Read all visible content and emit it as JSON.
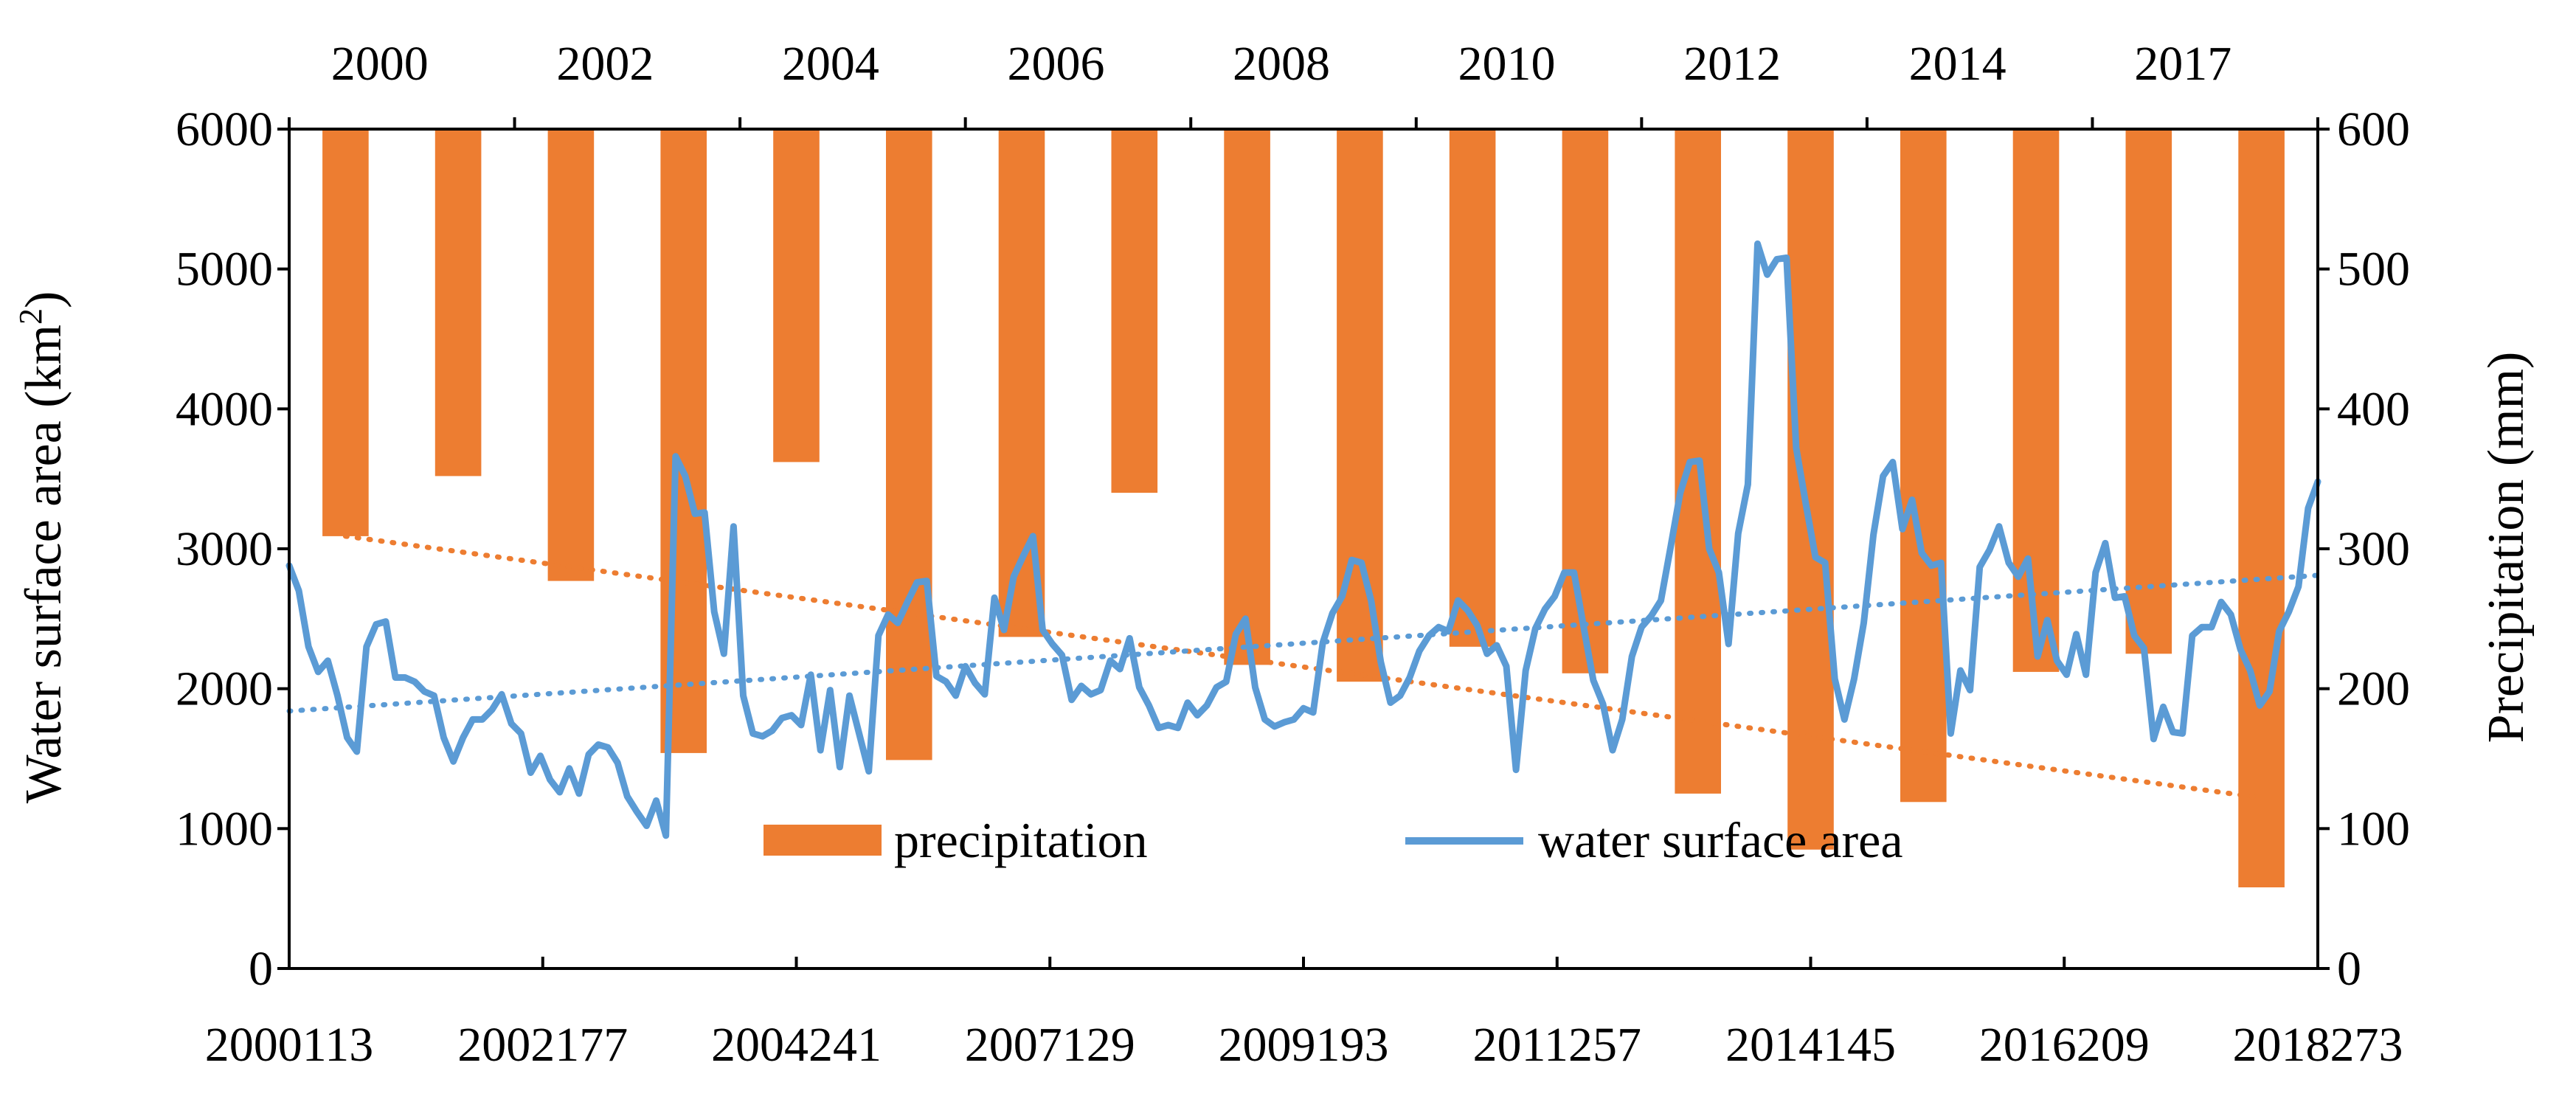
{
  "chart_data": {
    "type": "bar+line",
    "colors": {
      "precipitation": "#ED7D31",
      "water_surface_area": "#5B9BD5",
      "axis": "#000000"
    },
    "left_axis": {
      "title_main": "Water surface area (km",
      "title_sup": "2",
      "title_close": ")",
      "ylim": [
        0,
        6000
      ],
      "ticks": [
        "0",
        "1000",
        "2000",
        "3000",
        "4000",
        "5000",
        "6000"
      ]
    },
    "right_axis": {
      "title": "Precipitation (mm)",
      "ylim": [
        0,
        600
      ],
      "ticks": [
        "0",
        "100",
        "200",
        "300",
        "400",
        "500",
        "600"
      ]
    },
    "bottom_axis": {
      "tick_labels": [
        "2000113",
        "2002177",
        "2004241",
        "2007129",
        "2009193",
        "2011257",
        "2014145",
        "2016209",
        "2018273"
      ]
    },
    "top_axis": {
      "tick_labels": [
        "2000",
        "2002",
        "2004",
        "2006",
        "2008",
        "2010",
        "2012",
        "2014",
        "2017"
      ]
    },
    "legend": [
      {
        "key": "precipitation",
        "label": "precipitation",
        "kind": "bar"
      },
      {
        "key": "water_surface_area",
        "label": "water surface area",
        "kind": "line"
      }
    ],
    "precipitation": {
      "name": "precipitation",
      "unit": "mm",
      "values": [
        291,
        248,
        323,
        446,
        238,
        451,
        363,
        260,
        383,
        395,
        370,
        389,
        475,
        515,
        481,
        388,
        375,
        542
      ]
    },
    "precipitation_trend": {
      "start": 291,
      "end": 478
    },
    "water_surface_area": {
      "name": "water surface area",
      "unit": "km2",
      "values": [
        2880,
        2700,
        2300,
        2120,
        2200,
        1950,
        1650,
        1550,
        2300,
        2460,
        2480,
        2080,
        2080,
        2050,
        1980,
        1950,
        1650,
        1480,
        1650,
        1780,
        1780,
        1850,
        1960,
        1750,
        1680,
        1400,
        1520,
        1350,
        1260,
        1430,
        1250,
        1530,
        1600,
        1580,
        1470,
        1230,
        1120,
        1020,
        1200,
        950,
        3660,
        3520,
        3250,
        3260,
        2550,
        2250,
        3160,
        1950,
        1680,
        1660,
        1700,
        1790,
        1810,
        1740,
        2100,
        1560,
        1990,
        1440,
        1950,
        1680,
        1410,
        2380,
        2530,
        2470,
        2620,
        2760,
        2770,
        2090,
        2050,
        1950,
        2160,
        2040,
        1960,
        2650,
        2420,
        2800,
        2950,
        3090,
        2420,
        2320,
        2240,
        1920,
        2020,
        1960,
        1990,
        2200,
        2140,
        2360,
        2010,
        1880,
        1720,
        1740,
        1720,
        1900,
        1810,
        1880,
        2010,
        2050,
        2390,
        2500,
        2010,
        1780,
        1730,
        1760,
        1780,
        1860,
        1830,
        2330,
        2540,
        2660,
        2920,
        2900,
        2630,
        2190,
        1900,
        1950,
        2080,
        2270,
        2380,
        2440,
        2410,
        2630,
        2560,
        2450,
        2250,
        2310,
        2160,
        1420,
        2130,
        2430,
        2570,
        2660,
        2830,
        2830,
        2440,
        2060,
        1890,
        1560,
        1780,
        2230,
        2440,
        2520,
        2630,
        3010,
        3400,
        3620,
        3630,
        3000,
        2830,
        2320,
        3110,
        3460,
        5180,
        4960,
        5070,
        5080,
        3720,
        3320,
        2940,
        2900,
        2070,
        1780,
        2070,
        2470,
        3100,
        3520,
        3620,
        3140,
        3350,
        2970,
        2880,
        2900,
        1680,
        2130,
        1990,
        2870,
        2990,
        3160,
        2900,
        2800,
        2930,
        2230,
        2490,
        2200,
        2100,
        2390,
        2100,
        2830,
        3040,
        2650,
        2660,
        2380,
        2290,
        1640,
        1870,
        1690,
        1680,
        2380,
        2440,
        2440,
        2620,
        2530,
        2280,
        2130,
        1880,
        1980,
        2410,
        2550,
        2730,
        3290,
        3480
      ]
    },
    "water_surface_area_trend": {
      "start": 1840,
      "end": 2810
    }
  }
}
